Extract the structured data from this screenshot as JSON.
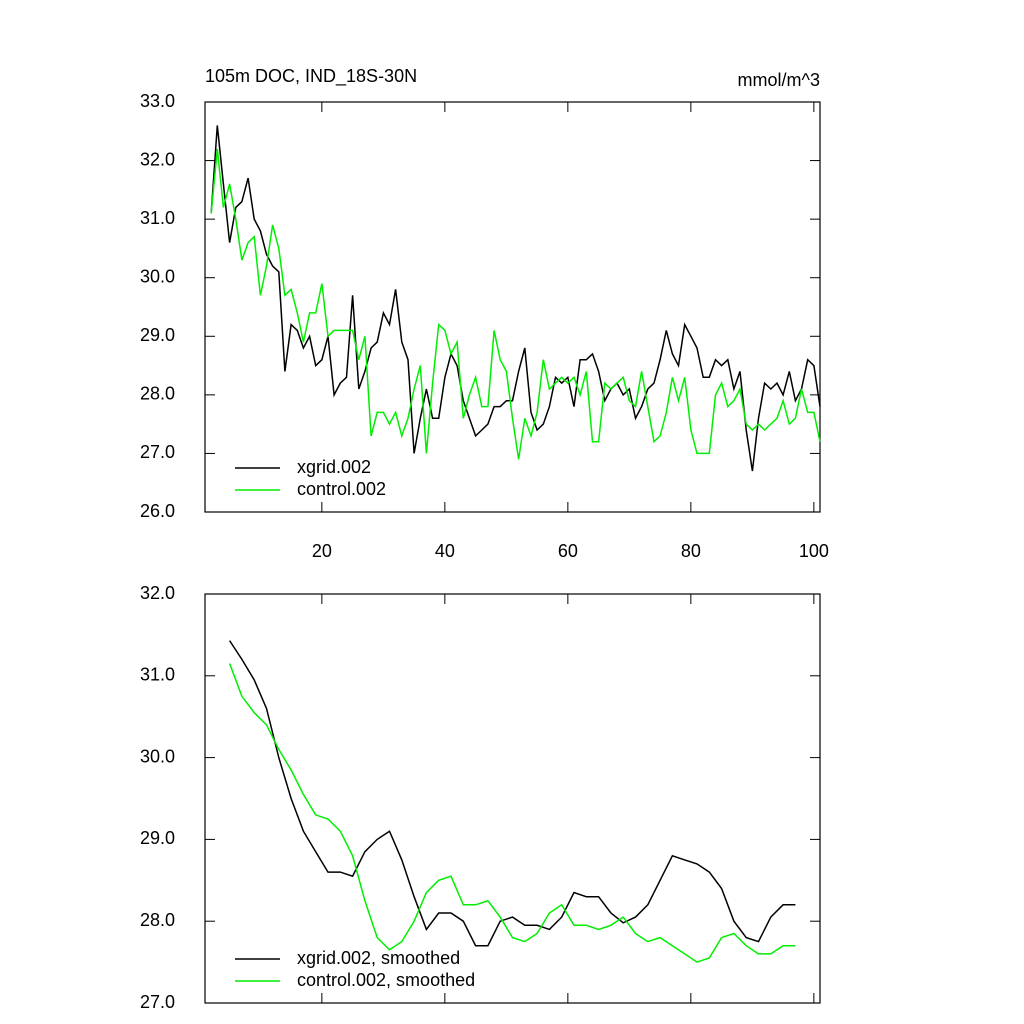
{
  "chart_data": [
    {
      "type": "line",
      "title": "105m DOC, IND_18S-30N",
      "subtitle": "mmol/m^3",
      "x": [
        2,
        3,
        4,
        5,
        6,
        7,
        8,
        9,
        10,
        11,
        12,
        13,
        14,
        15,
        16,
        17,
        18,
        19,
        20,
        21,
        22,
        23,
        24,
        25,
        26,
        27,
        28,
        29,
        30,
        31,
        32,
        33,
        34,
        35,
        36,
        37,
        38,
        39,
        40,
        41,
        42,
        43,
        44,
        45,
        46,
        47,
        48,
        49,
        50,
        51,
        52,
        53,
        54,
        55,
        56,
        57,
        58,
        59,
        60,
        61,
        62,
        63,
        64,
        65,
        66,
        67,
        68,
        69,
        70,
        71,
        72,
        73,
        74,
        75,
        76,
        77,
        78,
        79,
        80,
        81,
        82,
        83,
        84,
        85,
        86,
        87,
        88,
        89,
        90,
        91,
        92,
        93,
        94,
        95,
        96,
        97,
        98,
        99,
        100,
        101
      ],
      "series": [
        {
          "name": "xgrid.002",
          "color": "#000000",
          "values": [
            31.1,
            32.6,
            31.6,
            30.6,
            31.2,
            31.3,
            31.7,
            31.0,
            30.8,
            30.4,
            30.2,
            30.1,
            28.4,
            29.2,
            29.1,
            28.8,
            29.0,
            28.5,
            28.6,
            29.0,
            28.0,
            28.2,
            28.3,
            29.7,
            28.1,
            28.4,
            28.8,
            28.9,
            29.4,
            29.2,
            29.8,
            28.9,
            28.6,
            27.0,
            27.6,
            28.1,
            27.6,
            27.6,
            28.3,
            28.7,
            28.5,
            27.9,
            27.6,
            27.3,
            27.4,
            27.5,
            27.8,
            27.8,
            27.9,
            27.9,
            28.4,
            28.8,
            27.7,
            27.4,
            27.5,
            27.8,
            28.3,
            28.2,
            28.3,
            27.8,
            28.6,
            28.6,
            28.7,
            28.4,
            27.9,
            28.1,
            28.2,
            28.0,
            28.1,
            27.6,
            27.8,
            28.1,
            28.2,
            28.6,
            29.1,
            28.7,
            28.5,
            29.2,
            29.0,
            28.8,
            28.3,
            28.3,
            28.6,
            28.5,
            28.6,
            28.1,
            28.4,
            27.4,
            26.7,
            27.6,
            28.2,
            28.1,
            28.2,
            28.0,
            28.4,
            27.9,
            28.1,
            28.6,
            28.5,
            27.8
          ]
        },
        {
          "name": "control.002",
          "color": "#00ee00",
          "values": [
            31.1,
            32.2,
            31.2,
            31.6,
            31.0,
            30.3,
            30.6,
            30.7,
            29.7,
            30.2,
            30.9,
            30.5,
            29.7,
            29.8,
            29.4,
            28.9,
            29.4,
            29.4,
            29.9,
            29.0,
            29.1,
            29.1,
            29.1,
            29.1,
            28.6,
            29.0,
            27.3,
            27.7,
            27.7,
            27.5,
            27.7,
            27.3,
            27.6,
            28.1,
            28.5,
            27.0,
            28.2,
            29.2,
            29.1,
            28.7,
            28.9,
            27.6,
            28.0,
            28.3,
            27.8,
            27.8,
            29.1,
            28.6,
            28.4,
            27.6,
            26.9,
            27.6,
            27.3,
            27.7,
            28.6,
            28.1,
            28.2,
            28.3,
            28.2,
            28.3,
            28.0,
            28.4,
            27.2,
            27.2,
            28.2,
            28.1,
            28.2,
            28.3,
            27.9,
            27.8,
            28.4,
            27.8,
            27.2,
            27.3,
            27.7,
            28.3,
            27.9,
            28.3,
            27.4,
            27.0,
            27.0,
            27.0,
            28.0,
            28.2,
            27.8,
            27.9,
            28.1,
            27.5,
            27.4,
            27.5,
            27.4,
            27.5,
            27.6,
            27.9,
            27.5,
            27.6,
            28.1,
            27.7,
            27.7,
            27.2
          ]
        }
      ],
      "xlim": [
        1,
        101
      ],
      "xticks": [
        20,
        40,
        60,
        80,
        100
      ],
      "xtick_labels": true,
      "ylim": [
        26,
        33
      ],
      "yticks": [
        {
          "value": 26,
          "label": "26.0"
        },
        {
          "value": 27,
          "label": "27.0"
        },
        {
          "value": 28,
          "label": "28.0"
        },
        {
          "value": 29,
          "label": "29.0"
        },
        {
          "value": 30,
          "label": "30.0"
        },
        {
          "value": 31,
          "label": "31.0"
        },
        {
          "value": 32,
          "label": "32.0"
        },
        {
          "value": 33,
          "label": "33.0"
        }
      ],
      "legend": "lower left"
    },
    {
      "type": "line",
      "x": [
        5,
        7,
        9,
        11,
        13,
        15,
        17,
        19,
        21,
        23,
        25,
        27,
        29,
        31,
        33,
        35,
        37,
        39,
        41,
        43,
        45,
        47,
        49,
        51,
        53,
        55,
        57,
        59,
        61,
        63,
        65,
        67,
        69,
        71,
        73,
        75,
        77,
        79,
        81,
        83,
        85,
        87,
        89,
        91,
        93,
        95,
        97
      ],
      "series": [
        {
          "name": "xgrid.002, smoothed",
          "color": "#000000",
          "values": [
            31.43,
            31.2,
            30.95,
            30.6,
            30.0,
            29.5,
            29.1,
            28.85,
            28.6,
            28.6,
            28.55,
            28.85,
            29.0,
            29.1,
            28.75,
            28.3,
            27.9,
            28.1,
            28.1,
            28.0,
            27.7,
            27.7,
            28.0,
            28.05,
            27.95,
            27.95,
            27.9,
            28.05,
            28.35,
            28.3,
            28.3,
            28.1,
            27.98,
            28.05,
            28.2,
            28.5,
            28.8,
            28.75,
            28.7,
            28.6,
            28.4,
            28.0,
            27.8,
            27.75,
            28.05,
            28.2,
            28.2
          ]
        },
        {
          "name": "control.002, smoothed",
          "color": "#00ee00",
          "values": [
            31.15,
            30.75,
            30.55,
            30.4,
            30.1,
            29.85,
            29.55,
            29.3,
            29.25,
            29.1,
            28.8,
            28.25,
            27.8,
            27.65,
            27.75,
            28.0,
            28.35,
            28.5,
            28.55,
            28.2,
            28.2,
            28.25,
            28.05,
            27.8,
            27.75,
            27.85,
            28.1,
            28.2,
            27.95,
            27.95,
            27.9,
            27.95,
            28.05,
            27.85,
            27.75,
            27.8,
            27.7,
            27.6,
            27.5,
            27.55,
            27.8,
            27.85,
            27.7,
            27.6,
            27.6,
            27.7,
            27.7
          ]
        }
      ],
      "xlim": [
        1,
        101
      ],
      "xticks": [
        20,
        40,
        60,
        80,
        100
      ],
      "xtick_labels": false,
      "ylim": [
        27,
        32
      ],
      "yticks": [
        {
          "value": 27,
          "label": "27.0"
        },
        {
          "value": 28,
          "label": "28.0"
        },
        {
          "value": 29,
          "label": "29.0"
        },
        {
          "value": 30,
          "label": "30.0"
        },
        {
          "value": 31,
          "label": "31.0"
        },
        {
          "value": 32,
          "label": "32.0"
        }
      ],
      "legend": "lower left"
    }
  ]
}
